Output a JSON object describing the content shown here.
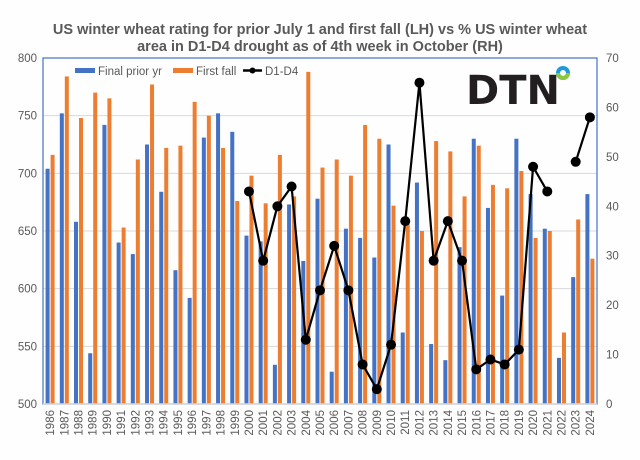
{
  "chart_data": {
    "type": "bar+line",
    "title": "US winter wheat rating for prior July 1 and first fall (LH) vs % US winter wheat area in D1-D4 drought as of 4th week in October (RH)",
    "title_lines": [
      "US winter wheat rating for prior July 1 and first fall (LH) vs % US winter wheat",
      "area in D1-D4 drought as of 4th week in October (RH)"
    ],
    "categories": [
      "1986",
      "1987",
      "1988",
      "1989",
      "1990",
      "1991",
      "1992",
      "1993",
      "1994",
      "1995",
      "1996",
      "1997",
      "1998",
      "1999",
      "2000",
      "2001",
      "2002",
      "2003",
      "2004",
      "2005",
      "2006",
      "2007",
      "2008",
      "2009",
      "2010",
      "2011",
      "2012",
      "2013",
      "2014",
      "2015",
      "2016",
      "2017",
      "2018",
      "2019",
      "2020",
      "2021",
      "2022",
      "2023",
      "2024"
    ],
    "series": [
      {
        "name": "Final prior yr",
        "type": "bar",
        "axis": "left",
        "color": "#4472c4",
        "values": [
          704,
          752,
          658,
          544,
          742,
          640,
          630,
          725,
          684,
          616,
          592,
          731,
          752,
          736,
          646,
          641,
          534,
          673,
          624,
          678,
          528,
          652,
          644,
          627,
          725,
          562,
          692,
          552,
          538,
          636,
          730,
          670,
          594,
          730,
          682,
          652,
          540,
          610,
          682
        ]
      },
      {
        "name": "First fall",
        "type": "bar",
        "axis": "left",
        "color": "#ed7d31",
        "values": [
          716,
          784,
          748,
          770,
          765,
          653,
          712,
          777,
          722,
          724,
          762,
          750,
          722,
          676,
          698,
          674,
          716,
          680,
          788,
          705,
          712,
          698,
          742,
          730,
          672,
          660,
          650,
          728,
          719,
          680,
          724,
          690,
          687,
          702,
          644,
          650,
          562,
          660,
          626
        ]
      },
      {
        "name": "D1-D4",
        "type": "line",
        "axis": "right",
        "color": "#000000",
        "values": [
          null,
          null,
          null,
          null,
          null,
          null,
          null,
          null,
          null,
          null,
          null,
          null,
          null,
          null,
          43,
          29,
          40,
          44,
          13,
          23,
          32,
          23,
          8,
          3,
          12,
          37,
          65,
          29,
          37,
          29,
          7,
          9,
          8,
          11,
          48,
          43,
          null,
          49,
          58
        ]
      }
    ],
    "left_axis": {
      "ylim": [
        500,
        800
      ],
      "ticks": [
        "500",
        "550",
        "600",
        "650",
        "700",
        "750",
        "800"
      ]
    },
    "right_axis": {
      "ylim": [
        0,
        70
      ],
      "ticks": [
        "0",
        "10",
        "20",
        "30",
        "40",
        "50",
        "60",
        "70"
      ]
    },
    "xlabel": "",
    "ylabel": "",
    "grid": true,
    "legend": {
      "position": "top-left",
      "entries": [
        "Final prior yr",
        "First fall",
        "D1-D4"
      ]
    }
  },
  "branding": {
    "logo_text": "DTN",
    "logo_ring_colors": [
      "#1e9bd7",
      "#8dc63f"
    ]
  },
  "colors": {
    "axis": "#4472c4",
    "grid": "#d9d9d9",
    "text": "#595959"
  }
}
